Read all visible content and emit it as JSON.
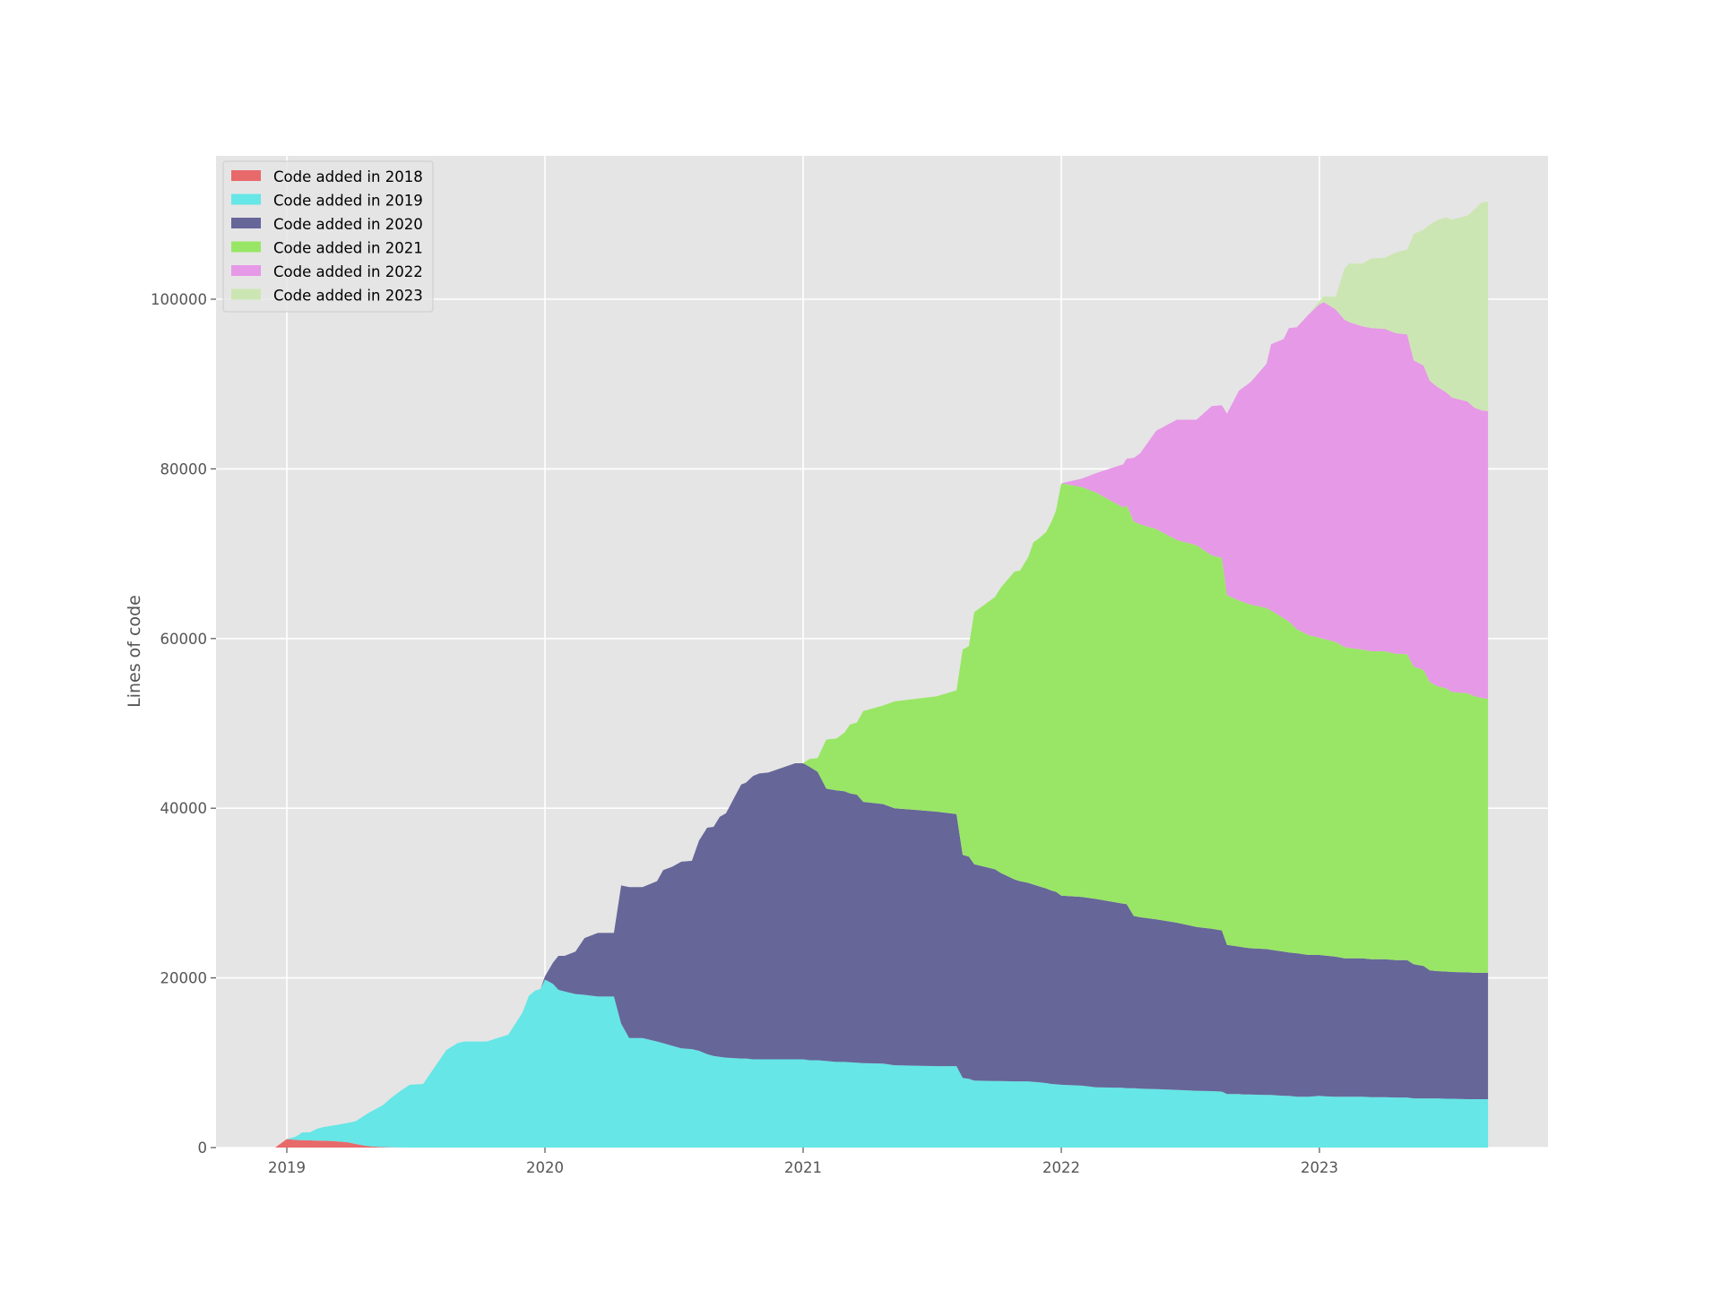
{
  "chart_data": {
    "type": "area",
    "stacked": true,
    "title": "",
    "xlabel": "",
    "ylabel": "Lines of code",
    "xlim": [
      2018.73,
      2023.91
    ],
    "ylim": [
      0,
      117000
    ],
    "grid": true,
    "legend_position": "upper left",
    "x_ticks": [
      2019,
      2020,
      2021,
      2022,
      2023
    ],
    "x_tick_labels": [
      "2019",
      "2020",
      "2021",
      "2022",
      "2023"
    ],
    "y_ticks": [
      0,
      20000,
      40000,
      60000,
      80000,
      100000
    ],
    "y_tick_labels": [
      "0",
      "20000",
      "40000",
      "60000",
      "80000",
      "100000"
    ],
    "x": [
      2018.955,
      2019.0,
      2019.035,
      2019.06,
      2019.09,
      2019.115,
      2019.14,
      2019.18,
      2019.236,
      2019.267,
      2019.302,
      2019.323,
      2019.372,
      2019.406,
      2019.441,
      2019.476,
      2019.528,
      2019.618,
      2019.66,
      2019.688,
      2019.774,
      2019.858,
      2019.913,
      2019.938,
      2019.962,
      2019.983,
      2020.0,
      2020.031,
      2020.052,
      2020.076,
      2020.118,
      2020.153,
      2020.205,
      2020.267,
      2020.295,
      2020.326,
      2020.378,
      2020.434,
      2020.458,
      2020.493,
      2020.528,
      2020.569,
      2020.597,
      2020.628,
      2020.653,
      2020.677,
      2020.701,
      2020.76,
      2020.778,
      2020.806,
      2020.83,
      2020.865,
      2020.969,
      2021.0,
      2021.024,
      2021.056,
      2021.09,
      2021.128,
      2021.16,
      2021.181,
      2021.208,
      2021.233,
      2021.309,
      2021.354,
      2021.517,
      2021.594,
      2021.618,
      2021.642,
      2021.663,
      2021.743,
      2021.767,
      2021.819,
      2021.84,
      2021.872,
      2021.892,
      2021.913,
      2021.941,
      2021.962,
      2021.979,
      2022.0,
      2022.08,
      2022.135,
      2022.24,
      2022.253,
      2022.281,
      2022.306,
      2022.368,
      2022.448,
      2022.524,
      2022.583,
      2022.622,
      2022.642,
      2022.688,
      2022.705,
      2022.733,
      2022.795,
      2022.813,
      2022.861,
      2022.882,
      2022.913,
      2022.958,
      2023.0,
      2023.017,
      2023.063,
      2023.097,
      2023.115,
      2023.167,
      2023.201,
      2023.253,
      2023.295,
      2023.34,
      2023.365,
      2023.403,
      2023.427,
      2023.455,
      2023.49,
      2023.514,
      2023.573,
      2023.601,
      2023.628,
      2023.653
    ],
    "series": [
      {
        "name": "Code added in 2018",
        "color": "#e8696a",
        "values": [
          0,
          1000,
          900,
          880,
          850,
          820,
          800,
          760,
          620,
          420,
          220,
          150,
          50,
          20,
          10,
          0,
          0,
          0,
          0,
          0,
          0,
          0,
          0,
          0,
          0,
          0,
          0,
          0,
          0,
          0,
          0,
          0,
          0,
          0,
          0,
          0,
          0,
          0,
          0,
          0,
          0,
          0,
          0,
          0,
          0,
          0,
          0,
          0,
          0,
          0,
          0,
          0,
          0,
          0,
          0,
          0,
          0,
          0,
          0,
          0,
          0,
          0,
          0,
          0,
          0,
          0,
          0,
          0,
          0,
          0,
          0,
          0,
          0,
          0,
          0,
          0,
          0,
          0,
          0,
          0,
          0,
          0,
          0,
          0,
          0,
          0,
          0,
          0,
          0,
          0,
          0,
          0,
          0,
          0,
          0,
          0,
          0,
          0,
          0,
          0,
          0,
          0,
          0,
          0,
          0,
          0,
          0,
          0,
          0,
          0,
          0,
          0,
          0,
          0,
          0,
          0,
          0,
          0,
          0,
          0,
          0
        ]
      },
      {
        "name": "Code added in 2019",
        "color": "#66e6e6",
        "values": [
          0,
          0,
          400,
          900,
          950,
          1380,
          1600,
          1840,
          2280,
          2680,
          3580,
          4050,
          4950,
          5880,
          6690,
          7400,
          7500,
          11500,
          12300,
          12500,
          12500,
          13300,
          15900,
          17900,
          18500,
          18700,
          19800,
          19300,
          18600,
          18400,
          18100,
          18000,
          17800,
          17800,
          14600,
          12900,
          12900,
          12500,
          12300,
          12000,
          11700,
          11600,
          11400,
          11000,
          10800,
          10700,
          10600,
          10500,
          10500,
          10400,
          10400,
          10400,
          10400,
          10400,
          10300,
          10300,
          10200,
          10100,
          10100,
          10050,
          10000,
          9950,
          9900,
          9700,
          9600,
          9600,
          8200,
          8100,
          7900,
          7850,
          7850,
          7800,
          7800,
          7800,
          7750,
          7700,
          7600,
          7500,
          7450,
          7400,
          7300,
          7100,
          7050,
          7000,
          7000,
          6950,
          6900,
          6800,
          6700,
          6650,
          6600,
          6300,
          6300,
          6250,
          6250,
          6200,
          6200,
          6100,
          6100,
          6000,
          6000,
          6100,
          6050,
          6000,
          6000,
          6000,
          6000,
          5950,
          5950,
          5900,
          5900,
          5800,
          5800,
          5800,
          5800,
          5750,
          5750,
          5700,
          5700,
          5700,
          5700
        ]
      },
      {
        "name": "Code added in 2020",
        "color": "#666699",
        "values": [
          0,
          0,
          0,
          0,
          0,
          0,
          0,
          0,
          0,
          0,
          0,
          0,
          0,
          0,
          0,
          0,
          0,
          0,
          0,
          0,
          0,
          0,
          0,
          0,
          0,
          0,
          400,
          2500,
          4000,
          4200,
          5000,
          6700,
          7500,
          7500,
          16300,
          17800,
          17800,
          18900,
          20400,
          21100,
          22000,
          22200,
          24800,
          26700,
          27000,
          28300,
          28800,
          32300,
          32500,
          33400,
          33700,
          33800,
          34900,
          34900,
          34600,
          34000,
          32100,
          32000,
          31900,
          31700,
          31600,
          30800,
          30600,
          30300,
          30000,
          29700,
          26300,
          26200,
          25500,
          24950,
          24500,
          23800,
          23600,
          23400,
          23250,
          23100,
          22950,
          22800,
          22700,
          22300,
          22250,
          22200,
          21700,
          21700,
          20300,
          20200,
          20000,
          19700,
          19300,
          19150,
          19000,
          17600,
          17400,
          17350,
          17250,
          17200,
          17100,
          17000,
          16900,
          16900,
          16700,
          16600,
          16600,
          16500,
          16300,
          16300,
          16300,
          16250,
          16250,
          16200,
          16200,
          15800,
          15600,
          15100,
          15000,
          15000,
          14950,
          14950,
          14900,
          14900,
          14900
        ]
      },
      {
        "name": "Code added in 2021",
        "color": "#99e666",
        "values": [
          0,
          0,
          0,
          0,
          0,
          0,
          0,
          0,
          0,
          0,
          0,
          0,
          0,
          0,
          0,
          0,
          0,
          0,
          0,
          0,
          0,
          0,
          0,
          0,
          0,
          0,
          0,
          0,
          0,
          0,
          0,
          0,
          0,
          0,
          0,
          0,
          0,
          0,
          0,
          0,
          0,
          0,
          0,
          0,
          0,
          0,
          0,
          0,
          0,
          0,
          0,
          0,
          0,
          0,
          900,
          1600,
          5800,
          6100,
          6900,
          8100,
          8500,
          10700,
          11600,
          12600,
          13600,
          14600,
          24200,
          24800,
          29700,
          32100,
          33700,
          36300,
          36600,
          38400,
          40350,
          41000,
          42000,
          43500,
          44900,
          48600,
          48300,
          47900,
          46700,
          47000,
          46500,
          46300,
          46000,
          45100,
          45000,
          44000,
          43900,
          41200,
          40800,
          40700,
          40500,
          40200,
          40000,
          39300,
          39000,
          38200,
          37700,
          37400,
          37300,
          37100,
          36700,
          36600,
          36400,
          36300,
          36300,
          36100,
          36050,
          35100,
          34900,
          34000,
          33600,
          33400,
          33000,
          32900,
          32600,
          32400,
          32300
        ]
      },
      {
        "name": "Code added in 2022",
        "color": "#e699e6",
        "values": [
          0,
          0,
          0,
          0,
          0,
          0,
          0,
          0,
          0,
          0,
          0,
          0,
          0,
          0,
          0,
          0,
          0,
          0,
          0,
          0,
          0,
          0,
          0,
          0,
          0,
          0,
          0,
          0,
          0,
          0,
          0,
          0,
          0,
          0,
          0,
          0,
          0,
          0,
          0,
          0,
          0,
          0,
          0,
          0,
          0,
          0,
          0,
          0,
          0,
          0,
          0,
          0,
          0,
          0,
          0,
          0,
          0,
          0,
          0,
          0,
          0,
          0,
          0,
          0,
          0,
          0,
          0,
          0,
          0,
          0,
          0,
          0,
          0,
          0,
          0,
          0,
          0,
          0,
          0,
          0,
          1000,
          2300,
          5100,
          5500,
          7500,
          8400,
          11600,
          14200,
          14800,
          17600,
          18000,
          21400,
          24700,
          25300,
          26200,
          28800,
          31400,
          32900,
          34600,
          35600,
          37800,
          39300,
          39700,
          39200,
          38600,
          38400,
          38100,
          38100,
          38000,
          37800,
          37700,
          36100,
          35900,
          35500,
          35300,
          34900,
          34700,
          34400,
          34000,
          33900,
          33900
        ]
      },
      {
        "name": "Code added in 2023",
        "color": "#cce6b3",
        "values": [
          0,
          0,
          0,
          0,
          0,
          0,
          0,
          0,
          0,
          0,
          0,
          0,
          0,
          0,
          0,
          0,
          0,
          0,
          0,
          0,
          0,
          0,
          0,
          0,
          0,
          0,
          0,
          0,
          0,
          0,
          0,
          0,
          0,
          0,
          0,
          0,
          0,
          0,
          0,
          0,
          0,
          0,
          0,
          0,
          0,
          0,
          0,
          0,
          0,
          0,
          0,
          0,
          0,
          0,
          0,
          0,
          0,
          0,
          0,
          0,
          0,
          0,
          0,
          0,
          0,
          0,
          0,
          0,
          0,
          0,
          0,
          0,
          0,
          0,
          0,
          0,
          0,
          0,
          0,
          0,
          0,
          0,
          0,
          0,
          0,
          0,
          0,
          0,
          0,
          0,
          0,
          0,
          0,
          0,
          0,
          0,
          0,
          0,
          0,
          0,
          0,
          400,
          700,
          1500,
          6000,
          6900,
          7400,
          8200,
          8400,
          9500,
          10000,
          14900,
          16000,
          18400,
          19600,
          20600,
          21000,
          21900,
          23400,
          24500,
          24700
        ]
      }
    ]
  },
  "legend": {
    "items": [
      {
        "label": "Code added in 2018",
        "color": "#e8696a"
      },
      {
        "label": "Code added in 2019",
        "color": "#66e6e6"
      },
      {
        "label": "Code added in 2020",
        "color": "#666699"
      },
      {
        "label": "Code added in 2021",
        "color": "#99e666"
      },
      {
        "label": "Code added in 2022",
        "color": "#e699e6"
      },
      {
        "label": "Code added in 2023",
        "color": "#cce6b3"
      }
    ]
  },
  "style": {
    "plot_background": "#e5e5e5",
    "grid_color": "#ffffff",
    "tick_color": "#555555"
  }
}
